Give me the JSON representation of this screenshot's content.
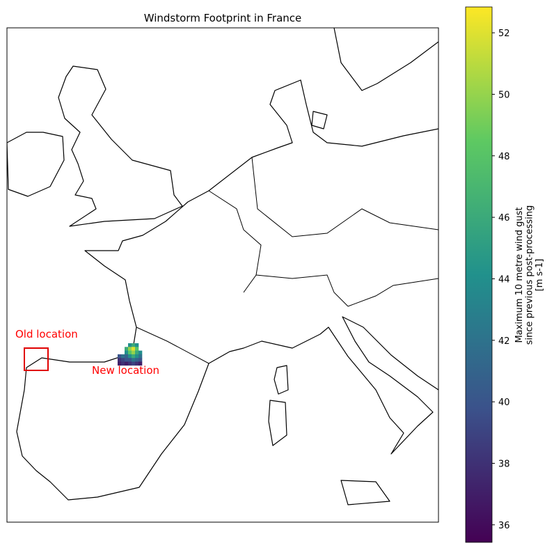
{
  "chart_data": {
    "type": "map",
    "title": "Windstorm Footprint in France",
    "annotations": [
      "Old location",
      "New location"
    ],
    "footprint": {
      "values": [
        [
          null,
          null,
          null,
          44,
          46,
          44,
          null
        ],
        [
          null,
          null,
          46,
          50,
          52,
          48,
          null
        ],
        [
          null,
          null,
          44,
          48,
          50,
          46,
          44
        ],
        [
          40,
          42,
          41,
          44,
          46,
          44,
          42
        ],
        [
          38,
          39,
          40,
          40,
          42,
          41,
          40
        ],
        [
          37,
          38,
          37,
          38,
          39,
          38,
          37
        ]
      ]
    },
    "colorbar": {
      "label": [
        "Maximum 10 metre wind gust",
        "since previous post-processing",
        "[m s-1]"
      ],
      "lim": [
        35.43,
        52.84
      ],
      "ticks": [
        36,
        38,
        40,
        42,
        44,
        46,
        48,
        50,
        52
      ],
      "colormap": "viridis"
    }
  }
}
